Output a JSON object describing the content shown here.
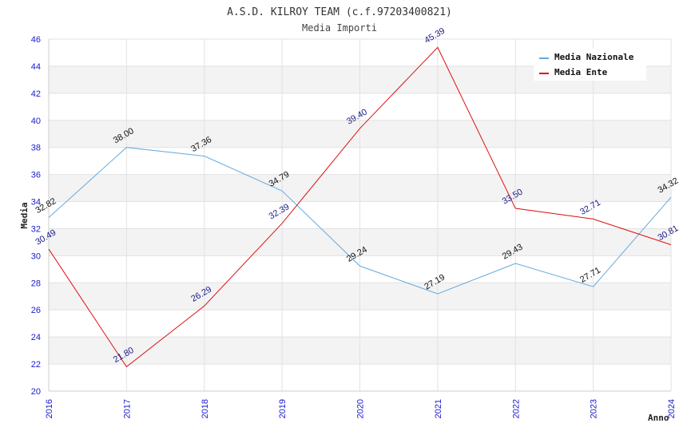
{
  "chart_data": {
    "type": "line",
    "title": "A.S.D. KILROY TEAM (c.f.97203400821)",
    "subtitle": "Media Importi",
    "xlabel": "Anno",
    "ylabel": "Media",
    "x": [
      "2016",
      "2017",
      "2018",
      "2019",
      "2020",
      "2021",
      "2022",
      "2023",
      "2024"
    ],
    "ylim": [
      20,
      46
    ],
    "yticks": [
      "20",
      "22",
      "24",
      "26",
      "28",
      "30",
      "32",
      "34",
      "36",
      "38",
      "40",
      "42",
      "44",
      "46"
    ],
    "grid": true,
    "legend_position": "top-right",
    "series": [
      {
        "name": "Media Nazionale",
        "color": "#66aadd",
        "label_color": "#111111",
        "values": [
          32.82,
          38.0,
          37.36,
          34.79,
          29.24,
          27.19,
          29.43,
          27.71,
          34.32
        ],
        "labels": [
          "32.82",
          "38.00",
          "37.36",
          "34.79",
          "29.24",
          "27.19",
          "29.43",
          "27.71",
          "34.32"
        ]
      },
      {
        "name": "Media Ente",
        "color": "#dd1111",
        "label_color": "#1a1a88",
        "values": [
          30.49,
          21.8,
          26.29,
          32.39,
          39.4,
          45.39,
          33.5,
          32.71,
          30.81
        ],
        "labels": [
          "30.49",
          "21.80",
          "26.29",
          "32.39",
          "39.40",
          "45.39",
          "33.50",
          "32.71",
          "30.81"
        ]
      }
    ]
  }
}
